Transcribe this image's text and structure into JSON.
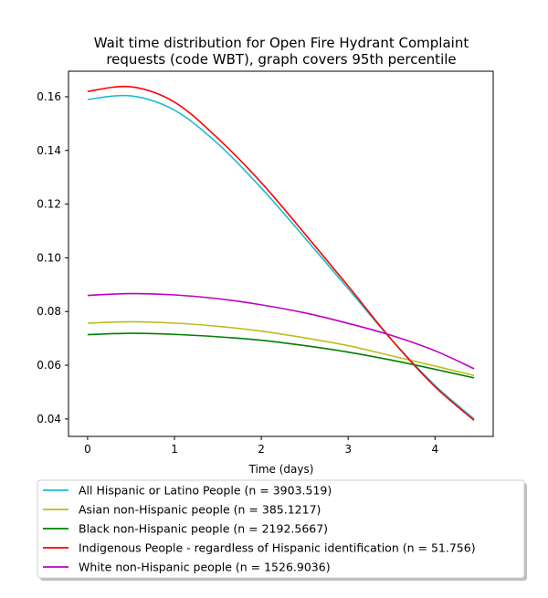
{
  "chart_data": {
    "type": "line",
    "title_lines": [
      "Wait time distribution  for Open Fire Hydrant Complaint",
      "requests (code WBT), graph covers 95th percentile"
    ],
    "xlabel": "Time (days)",
    "ylabel": "",
    "xlim": [
      -0.22,
      4.67
    ],
    "ylim": [
      0.0335,
      0.1695
    ],
    "x_ticks": [
      0,
      1,
      2,
      3,
      4
    ],
    "y_ticks": [
      0.04,
      0.06,
      0.08,
      0.1,
      0.12,
      0.14,
      0.16
    ],
    "y_tick_labels": [
      "0.04",
      "0.06",
      "0.08",
      "0.10",
      "0.12",
      "0.14",
      "0.16"
    ],
    "grid": false,
    "legend_position": "bottom",
    "x": [
      0,
      0.5,
      1,
      1.5,
      2,
      2.5,
      3,
      3.5,
      4,
      4.45
    ],
    "series": [
      {
        "name": "All Hispanic or Latino People (n = 3903.519)",
        "color": "#17becf",
        "values": [
          0.159,
          0.1603,
          0.155,
          0.1425,
          0.126,
          0.1075,
          0.0885,
          0.0695,
          0.0525,
          0.04
        ]
      },
      {
        "name": "Asian non-Hispanic people (n = 385.1217)",
        "color": "#bcbd22",
        "values": [
          0.0757,
          0.0762,
          0.0757,
          0.0745,
          0.0727,
          0.0702,
          0.0673,
          0.0635,
          0.0597,
          0.0562
        ]
      },
      {
        "name": "Black non-Hispanic people (n = 2192.5667)",
        "color": "#008000",
        "values": [
          0.0714,
          0.0719,
          0.0715,
          0.0706,
          0.0693,
          0.0673,
          0.0649,
          0.0619,
          0.0585,
          0.0553
        ]
      },
      {
        "name": "Indigenous People - regardless of Hispanic identification (n = 51.756)",
        "color": "#ff0000",
        "values": [
          0.162,
          0.1637,
          0.158,
          0.1445,
          0.128,
          0.109,
          0.0895,
          0.0695,
          0.052,
          0.0395
        ]
      },
      {
        "name": "White non-Hispanic people (n = 1526.9036)",
        "color": "#bf00bf",
        "values": [
          0.086,
          0.0867,
          0.0862,
          0.0848,
          0.0825,
          0.0795,
          0.0756,
          0.0711,
          0.0654,
          0.0587
        ]
      }
    ]
  }
}
